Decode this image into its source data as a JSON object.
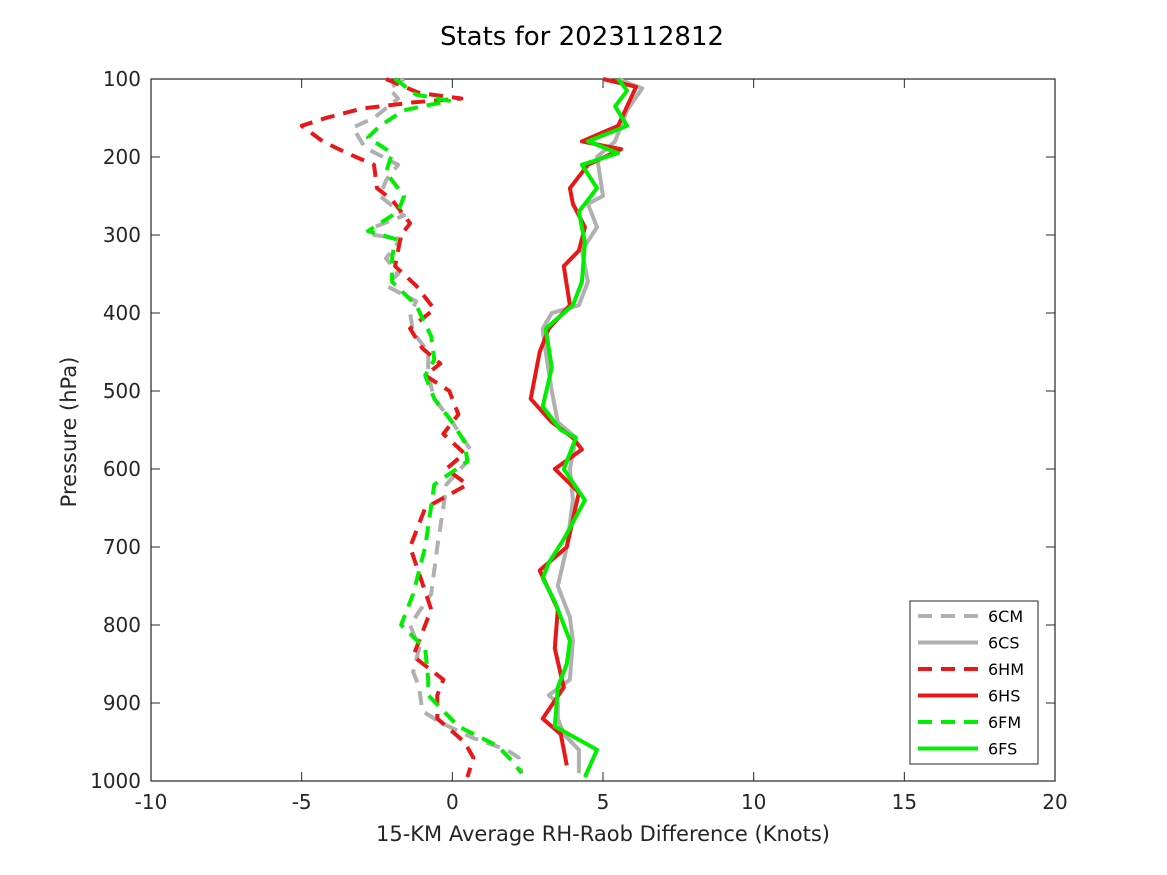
{
  "chart_data": {
    "type": "line",
    "title": "Stats for 2023112812",
    "xlabel": "15-KM Average RH-Raob Difference (Knots)",
    "ylabel": "Pressure (hPa)",
    "xlim": [
      -10,
      20
    ],
    "ylim": [
      100,
      1000
    ],
    "y_reversed": true,
    "grid": false,
    "legend_position": "bottom-right",
    "x_ticks": [
      -10,
      -5,
      0,
      5,
      10,
      15,
      20
    ],
    "y_ticks": [
      100,
      200,
      300,
      400,
      500,
      600,
      700,
      800,
      900,
      1000
    ],
    "series": [
      {
        "name": "6CM",
        "color": "#b0b0b0",
        "dashed": true,
        "points": [
          [
            -1.6,
            100
          ],
          [
            -2.1,
            112
          ],
          [
            -1.8,
            125
          ],
          [
            -2.6,
            150
          ],
          [
            -3.3,
            162
          ],
          [
            -2.9,
            188
          ],
          [
            -1.8,
            210
          ],
          [
            -2.2,
            230
          ],
          [
            -2.4,
            250
          ],
          [
            -1.6,
            275
          ],
          [
            -2.6,
            290
          ],
          [
            -2.6,
            300
          ],
          [
            -1.7,
            305
          ],
          [
            -2.2,
            330
          ],
          [
            -1.8,
            350
          ],
          [
            -2.2,
            365
          ],
          [
            -1.2,
            385
          ],
          [
            -1.4,
            400
          ],
          [
            -1.3,
            425
          ],
          [
            -0.8,
            450
          ],
          [
            -0.8,
            480
          ],
          [
            -0.6,
            510
          ],
          [
            0.0,
            540
          ],
          [
            0.6,
            575
          ],
          [
            0.5,
            590
          ],
          [
            -0.2,
            620
          ],
          [
            -0.3,
            650
          ],
          [
            -0.5,
            700
          ],
          [
            -0.7,
            760
          ],
          [
            -1.4,
            800
          ],
          [
            -1.1,
            830
          ],
          [
            -1.3,
            860
          ],
          [
            -1.1,
            880
          ],
          [
            -1.0,
            910
          ],
          [
            -0.4,
            925
          ],
          [
            0.7,
            945
          ],
          [
            1.8,
            960
          ],
          [
            2.2,
            970
          ],
          [
            2.3,
            990
          ]
        ]
      },
      {
        "name": "6CS",
        "color": "#b0b0b0",
        "dashed": false,
        "points": [
          [
            5.5,
            100
          ],
          [
            6.3,
            112
          ],
          [
            5.8,
            140
          ],
          [
            5.4,
            180
          ],
          [
            4.8,
            200
          ],
          [
            5.0,
            250
          ],
          [
            4.5,
            260
          ],
          [
            4.8,
            290
          ],
          [
            4.3,
            320
          ],
          [
            4.5,
            360
          ],
          [
            4.2,
            390
          ],
          [
            3.3,
            400
          ],
          [
            3.0,
            420
          ],
          [
            3.1,
            450
          ],
          [
            3.3,
            500
          ],
          [
            3.5,
            540
          ],
          [
            4.1,
            560
          ],
          [
            3.9,
            600
          ],
          [
            4.0,
            640
          ],
          [
            3.8,
            700
          ],
          [
            3.5,
            750
          ],
          [
            3.9,
            790
          ],
          [
            4.0,
            820
          ],
          [
            3.9,
            870
          ],
          [
            3.2,
            890
          ],
          [
            3.5,
            900
          ],
          [
            3.5,
            920
          ],
          [
            3.7,
            940
          ],
          [
            4.2,
            960
          ],
          [
            4.2,
            990
          ]
        ]
      },
      {
        "name": "6HM",
        "color": "#e81818",
        "dashed": true,
        "points": [
          [
            -2.2,
            100
          ],
          [
            -1.1,
            118
          ],
          [
            0.3,
            125
          ],
          [
            -1.3,
            130
          ],
          [
            -3.0,
            138
          ],
          [
            -4.2,
            150
          ],
          [
            -5.0,
            160
          ],
          [
            -4.3,
            180
          ],
          [
            -3.5,
            195
          ],
          [
            -2.6,
            210
          ],
          [
            -2.5,
            240
          ],
          [
            -2.0,
            255
          ],
          [
            -1.4,
            285
          ],
          [
            -1.7,
            300
          ],
          [
            -1.9,
            340
          ],
          [
            -1.2,
            365
          ],
          [
            -0.6,
            395
          ],
          [
            -1.4,
            420
          ],
          [
            -1.0,
            445
          ],
          [
            -0.4,
            465
          ],
          [
            -0.9,
            480
          ],
          [
            -0.1,
            500
          ],
          [
            0.2,
            530
          ],
          [
            -0.3,
            555
          ],
          [
            0.4,
            580
          ],
          [
            -0.2,
            600
          ],
          [
            0.5,
            620
          ],
          [
            -0.9,
            650
          ],
          [
            -1.4,
            700
          ],
          [
            -0.7,
            780
          ],
          [
            -1.3,
            840
          ],
          [
            -0.3,
            870
          ],
          [
            -0.5,
            890
          ],
          [
            -0.5,
            920
          ],
          [
            0.4,
            950
          ],
          [
            0.7,
            970
          ],
          [
            0.5,
            995
          ]
        ]
      },
      {
        "name": "6HS",
        "color": "#e81818",
        "dashed": false,
        "points": [
          [
            5.0,
            100
          ],
          [
            6.1,
            110
          ],
          [
            5.8,
            135
          ],
          [
            5.5,
            160
          ],
          [
            4.3,
            180
          ],
          [
            5.6,
            190
          ],
          [
            4.5,
            210
          ],
          [
            3.9,
            240
          ],
          [
            4.0,
            260
          ],
          [
            4.4,
            290
          ],
          [
            4.2,
            320
          ],
          [
            3.7,
            340
          ],
          [
            3.9,
            390
          ],
          [
            3.2,
            420
          ],
          [
            2.9,
            450
          ],
          [
            2.6,
            510
          ],
          [
            3.3,
            540
          ],
          [
            4.0,
            560
          ],
          [
            4.3,
            575
          ],
          [
            3.4,
            600
          ],
          [
            4.2,
            630
          ],
          [
            3.8,
            700
          ],
          [
            2.9,
            730
          ],
          [
            3.5,
            780
          ],
          [
            3.4,
            830
          ],
          [
            3.7,
            880
          ],
          [
            3.0,
            920
          ],
          [
            3.6,
            940
          ],
          [
            3.8,
            980
          ]
        ]
      },
      {
        "name": "6FM",
        "color": "#00ee00",
        "dashed": true,
        "points": [
          [
            -1.9,
            100
          ],
          [
            -1.2,
            120
          ],
          [
            -0.1,
            128
          ],
          [
            -1.6,
            140
          ],
          [
            -2.4,
            160
          ],
          [
            -2.8,
            175
          ],
          [
            -2.0,
            195
          ],
          [
            -2.2,
            220
          ],
          [
            -1.6,
            250
          ],
          [
            -1.8,
            270
          ],
          [
            -2.8,
            295
          ],
          [
            -1.9,
            305
          ],
          [
            -2.0,
            330
          ],
          [
            -2.0,
            360
          ],
          [
            -1.2,
            390
          ],
          [
            -0.7,
            430
          ],
          [
            -0.6,
            460
          ],
          [
            -0.9,
            480
          ],
          [
            -0.6,
            510
          ],
          [
            0.0,
            540
          ],
          [
            0.4,
            565
          ],
          [
            0.5,
            590
          ],
          [
            -0.6,
            620
          ],
          [
            -0.9,
            700
          ],
          [
            -1.3,
            760
          ],
          [
            -1.7,
            800
          ],
          [
            -0.9,
            830
          ],
          [
            -0.8,
            870
          ],
          [
            -0.8,
            890
          ],
          [
            0.2,
            930
          ],
          [
            1.5,
            955
          ],
          [
            2.0,
            975
          ],
          [
            2.3,
            990
          ]
        ]
      },
      {
        "name": "6FS",
        "color": "#00ee00",
        "dashed": false,
        "points": [
          [
            5.5,
            100
          ],
          [
            5.8,
            115
          ],
          [
            5.4,
            135
          ],
          [
            5.8,
            160
          ],
          [
            4.5,
            180
          ],
          [
            5.5,
            195
          ],
          [
            4.3,
            210
          ],
          [
            4.8,
            240
          ],
          [
            4.2,
            270
          ],
          [
            4.4,
            310
          ],
          [
            4.3,
            360
          ],
          [
            4.0,
            390
          ],
          [
            3.1,
            420
          ],
          [
            3.3,
            470
          ],
          [
            3.0,
            520
          ],
          [
            3.6,
            550
          ],
          [
            4.1,
            560
          ],
          [
            3.7,
            600
          ],
          [
            4.4,
            640
          ],
          [
            3.7,
            690
          ],
          [
            3.2,
            720
          ],
          [
            3.0,
            740
          ],
          [
            3.4,
            770
          ],
          [
            3.9,
            820
          ],
          [
            3.8,
            850
          ],
          [
            3.5,
            880
          ],
          [
            3.4,
            930
          ],
          [
            4.8,
            960
          ],
          [
            4.4,
            995
          ]
        ]
      }
    ]
  }
}
